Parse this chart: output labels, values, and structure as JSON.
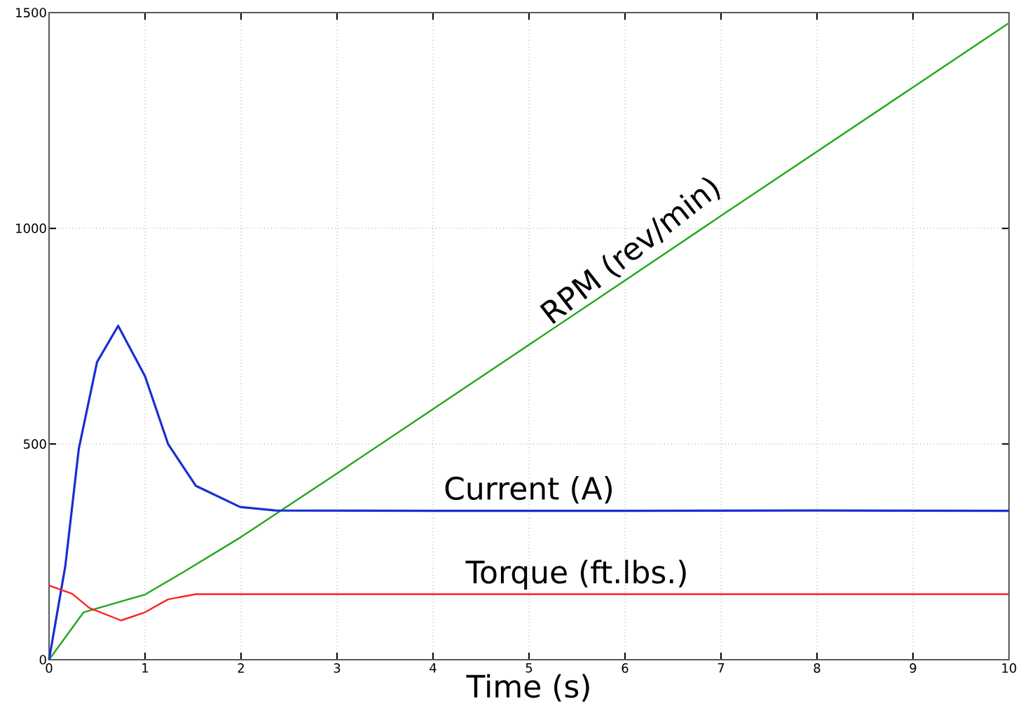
{
  "chart_data": {
    "type": "line",
    "xlabel": "Time (s)",
    "xlim": [
      0,
      10
    ],
    "xticks": [
      0,
      1,
      2,
      3,
      4,
      5,
      6,
      7,
      8,
      9,
      10
    ],
    "ylim": [
      0,
      1500
    ],
    "yticks": [
      0,
      500,
      1000,
      1500
    ],
    "grid": true,
    "legend": false,
    "line_style": "solid",
    "marker": "none",
    "series": [
      {
        "name": "RPM (rev/min)",
        "color": "#1fa81a",
        "x": [
          0,
          0.36,
          0.75,
          1.0,
          1.39,
          1.99,
          3,
          4,
          5,
          6,
          7,
          8,
          9,
          10
        ],
        "values": [
          0,
          110,
          135,
          151,
          202,
          283,
          432,
          581,
          730,
          879,
          1029,
          1178,
          1327,
          1476
        ]
      },
      {
        "name": "Current (A)",
        "color": "#1a2ed4",
        "x": [
          0,
          0.17,
          0.31,
          0.5,
          0.72,
          1.0,
          1.24,
          1.53,
          1.99,
          2.36,
          4,
          6,
          8,
          10
        ],
        "values": [
          0,
          218,
          489,
          690,
          774,
          657,
          500,
          403,
          354,
          346,
          345,
          345,
          346,
          345
        ]
      },
      {
        "name": "Torque (ft.lbs.)",
        "color": "#ff2020",
        "x": [
          0,
          0.24,
          0.42,
          0.75,
          1.0,
          1.24,
          1.53,
          3,
          5,
          7,
          10
        ],
        "values": [
          172,
          153,
          120,
          91,
          110,
          140,
          152,
          152,
          152,
          152,
          152
        ]
      }
    ]
  }
}
